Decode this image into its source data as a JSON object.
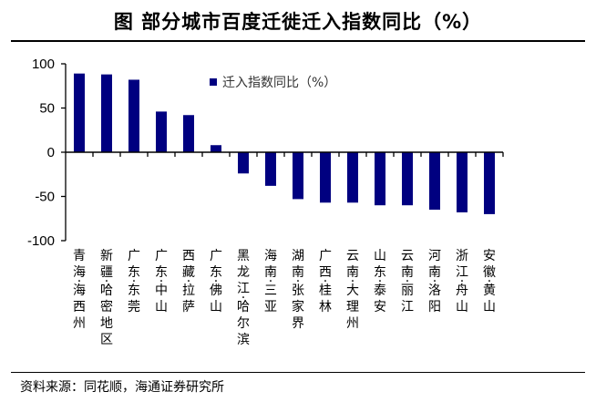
{
  "title": "图  部分城市百度迁徙迁入指数同比（%）",
  "source": "资料来源：同花顺，海通证券研究所",
  "colors": {
    "bar": "#000080"
  },
  "chart_data": {
    "type": "bar",
    "title": "",
    "xlabel": "",
    "ylabel": "",
    "ylim": [
      -100,
      100
    ],
    "yticks": [
      100,
      50,
      0,
      -50,
      -100
    ],
    "legend": {
      "label": "迁入指数同比（%）",
      "placement": "top-right"
    },
    "categories": [
      "青海·海西州",
      "新疆·哈密地区",
      "广东·东莞",
      "广东·中山",
      "西藏·拉萨",
      "广东·佛山",
      "黑龙江·哈尔滨",
      "海南·三亚",
      "湖南·张家界",
      "广西·桂林",
      "云南·大理州",
      "山东·泰安",
      "云南·丽江",
      "河南·洛阳",
      "浙江·舟山",
      "安徽·黄山"
    ],
    "series": [
      {
        "name": "迁入指数同比（%）",
        "values": [
          89,
          88,
          82,
          46,
          42,
          8,
          -24,
          -38,
          -53,
          -57,
          -57,
          -60,
          -60,
          -65,
          -68,
          -70
        ]
      }
    ]
  }
}
